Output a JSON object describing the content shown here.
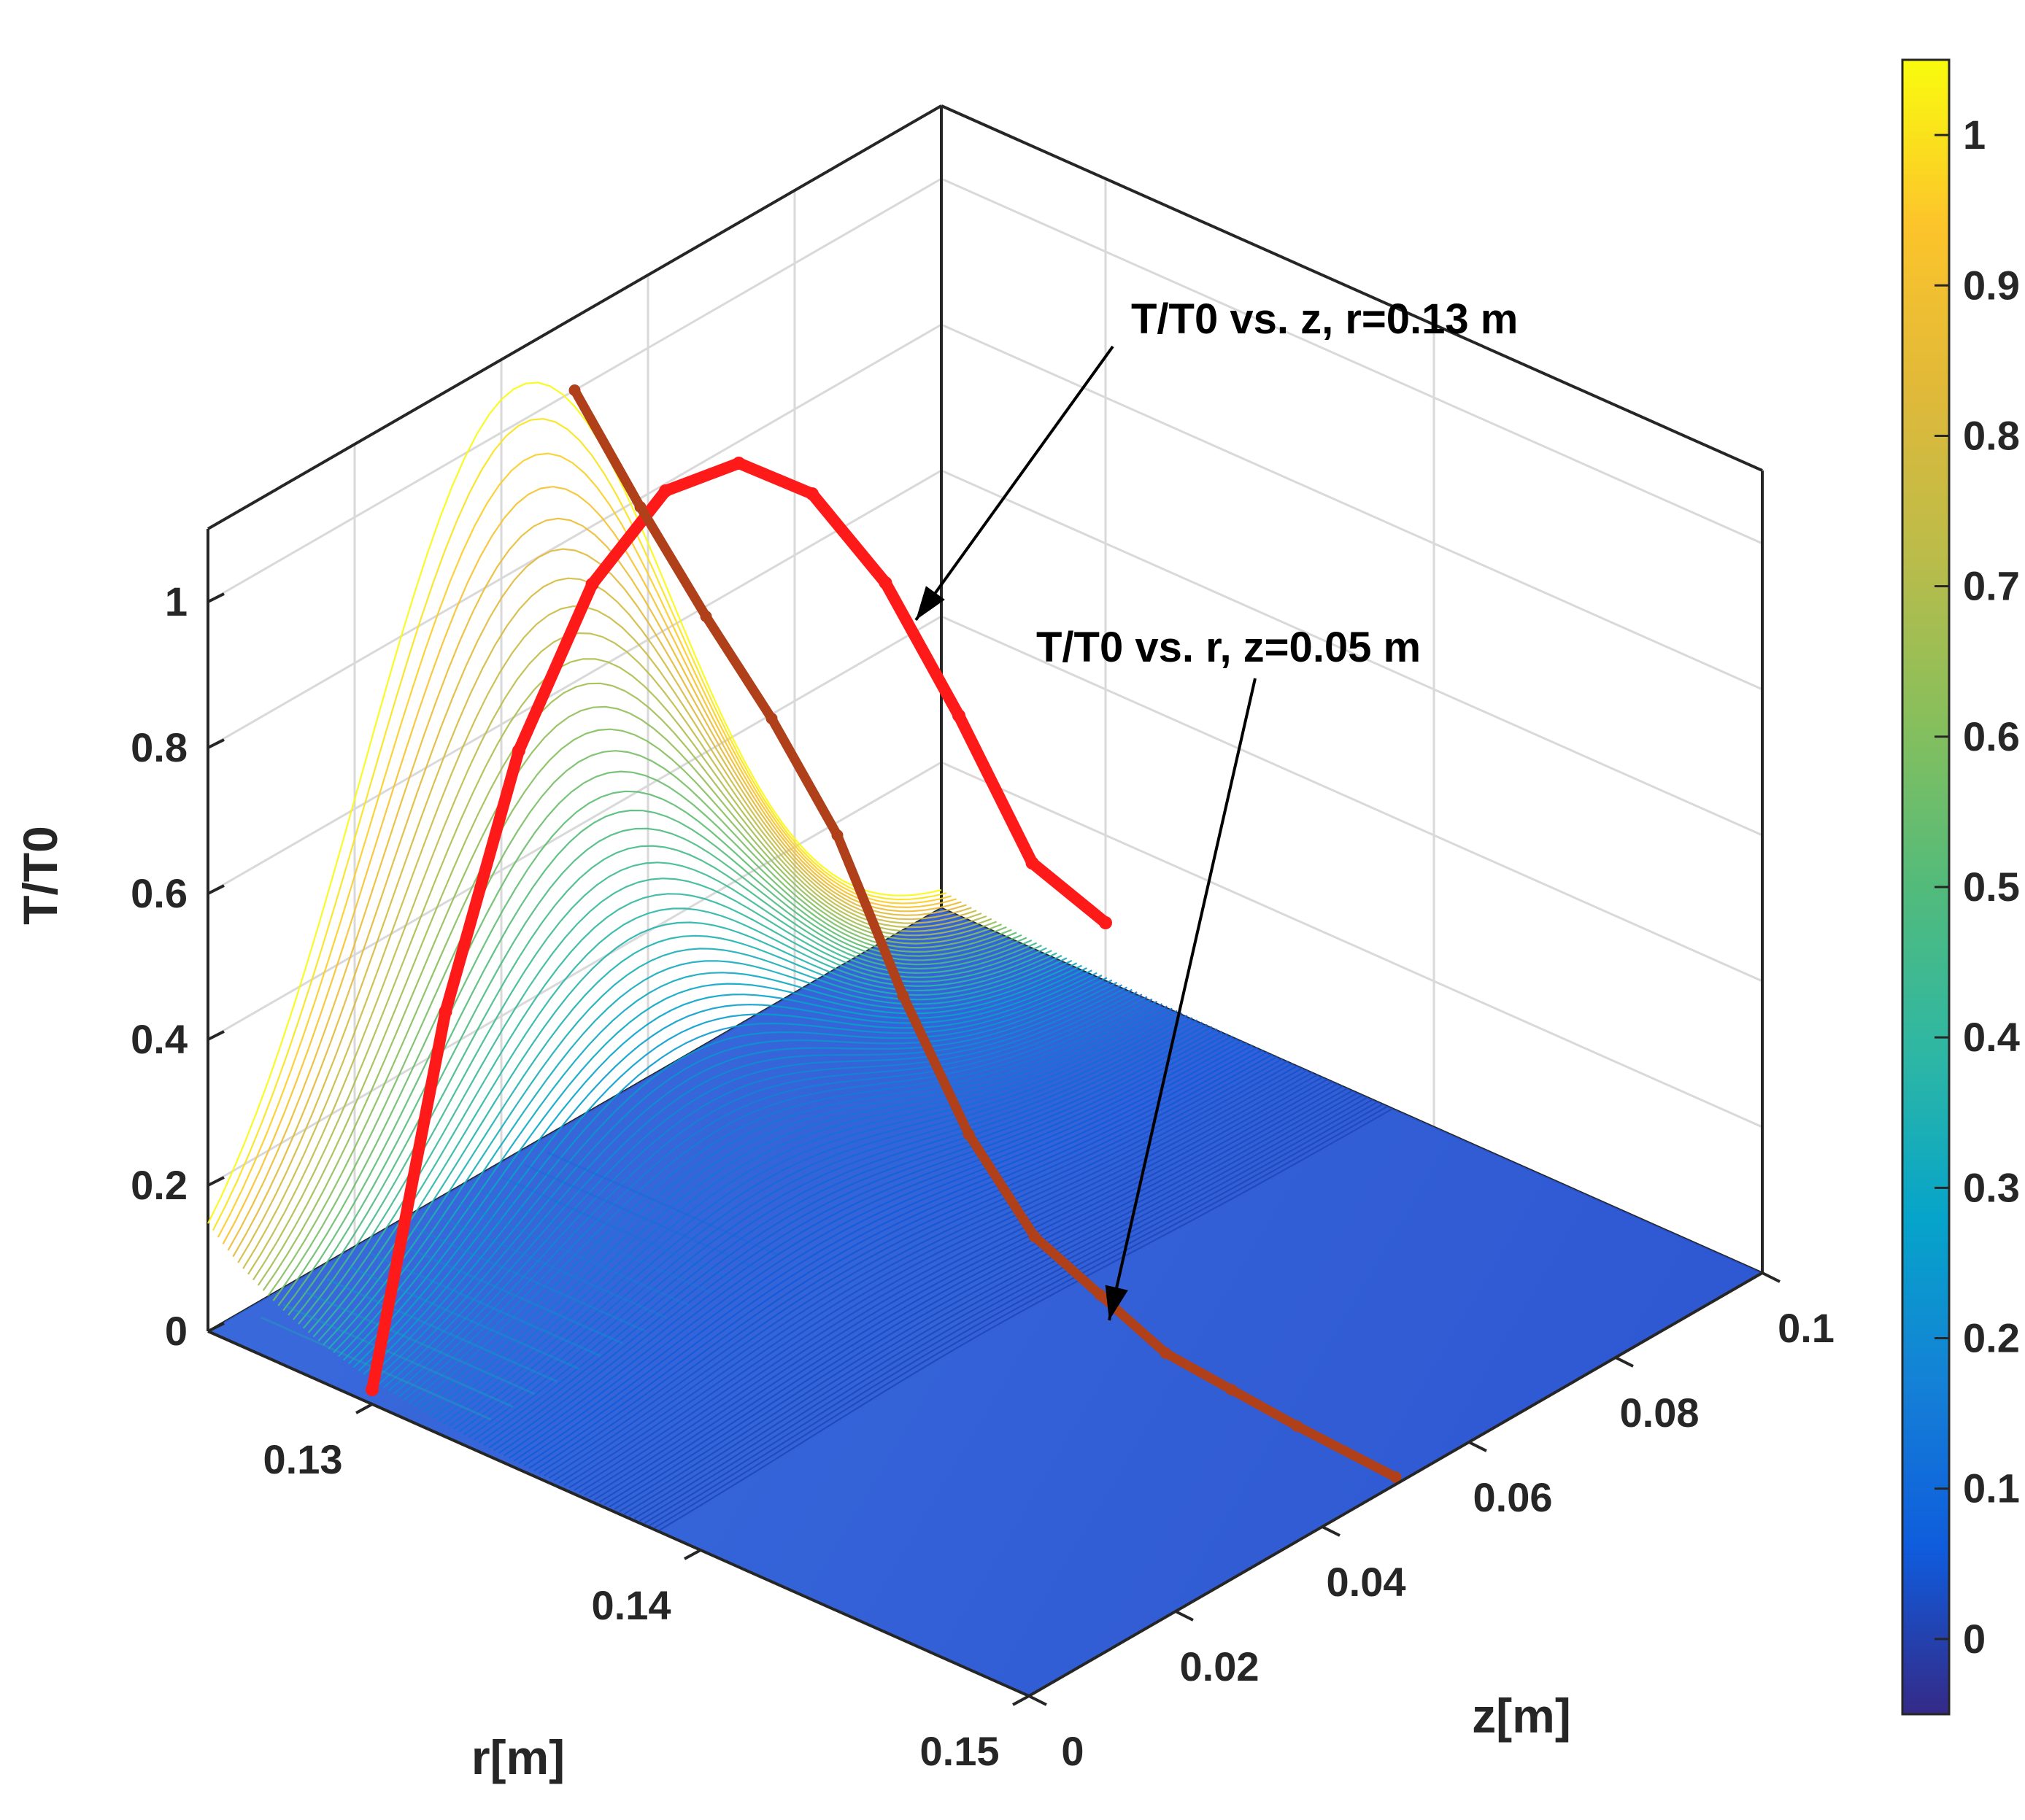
{
  "chart_data": {
    "type": "surface3d",
    "title": "",
    "zlabel": "T/T0",
    "xlabel": "r[m]",
    "ylabel": "z[m]",
    "zlim": [
      0,
      1.1
    ],
    "rlim": [
      0.125,
      0.15
    ],
    "zaxis_range": [
      0,
      0.1
    ],
    "r_ticks": [
      "0.13",
      "0.14",
      "0.15"
    ],
    "z_ticks": [
      "0",
      "0.02",
      "0.04",
      "0.06",
      "0.08",
      "0.1"
    ],
    "t_ticks": [
      "0",
      "0.2",
      "0.4",
      "0.6",
      "0.8",
      "1"
    ],
    "colorbar": {
      "ticks": [
        "0",
        "0.1",
        "0.2",
        "0.3",
        "0.4",
        "0.5",
        "0.6",
        "0.7",
        "0.8",
        "0.9",
        "1"
      ],
      "range": [
        -0.05,
        1.05
      ],
      "colormap": "parula"
    },
    "series": [
      {
        "name": "T/T0 vs. z, r=0.13 m",
        "color": "#ff1a1a",
        "r": 0.13,
        "z": [
          0.0,
          0.01,
          0.02,
          0.03,
          0.04,
          0.05,
          0.06,
          0.07,
          0.08,
          0.09,
          0.1
        ],
        "t": [
          0.02,
          0.48,
          0.78,
          0.95,
          1.02,
          1.0,
          0.9,
          0.72,
          0.48,
          0.22,
          0.08
        ]
      },
      {
        "name": "T/T0 vs. r, z=0.05 m",
        "color": "#b0401a",
        "z": 0.05,
        "r": [
          0.125,
          0.127,
          0.129,
          0.131,
          0.133,
          0.135,
          0.137,
          0.139,
          0.141,
          0.143,
          0.145,
          0.147,
          0.15
        ],
        "t": [
          1.0,
          0.88,
          0.77,
          0.67,
          0.55,
          0.37,
          0.22,
          0.12,
          0.08,
          0.04,
          0.03,
          0.02,
          0.01
        ]
      }
    ],
    "annotations": [
      "T/T0 vs. z, r=0.13 m",
      "T/T0 vs. r, z=0.05 m"
    ]
  }
}
